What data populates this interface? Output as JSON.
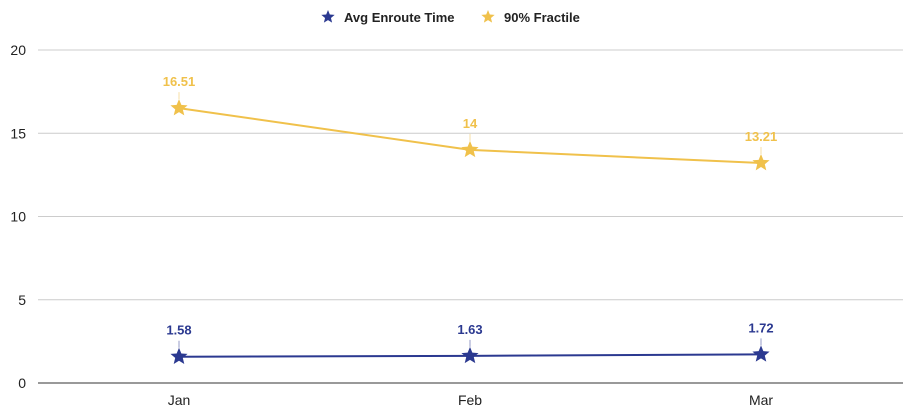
{
  "chart_data": {
    "type": "line",
    "categories": [
      "Jan",
      "Feb",
      "Mar"
    ],
    "series": [
      {
        "name": "Avg Enroute Time",
        "values": [
          1.58,
          1.63,
          1.72
        ],
        "labels": [
          "1.58",
          "1.63",
          "1.72"
        ],
        "color": "#2b3990",
        "marker": "star"
      },
      {
        "name": "90% Fractile",
        "values": [
          16.51,
          14,
          13.21
        ],
        "labels": [
          "16.51",
          "14",
          "13.21"
        ],
        "color": "#f0c14b",
        "marker": "star"
      }
    ],
    "ylim": [
      0,
      20
    ],
    "yticks": [
      "0",
      "5",
      "10",
      "15",
      "20"
    ],
    "grid": true,
    "legend": "top-center"
  }
}
